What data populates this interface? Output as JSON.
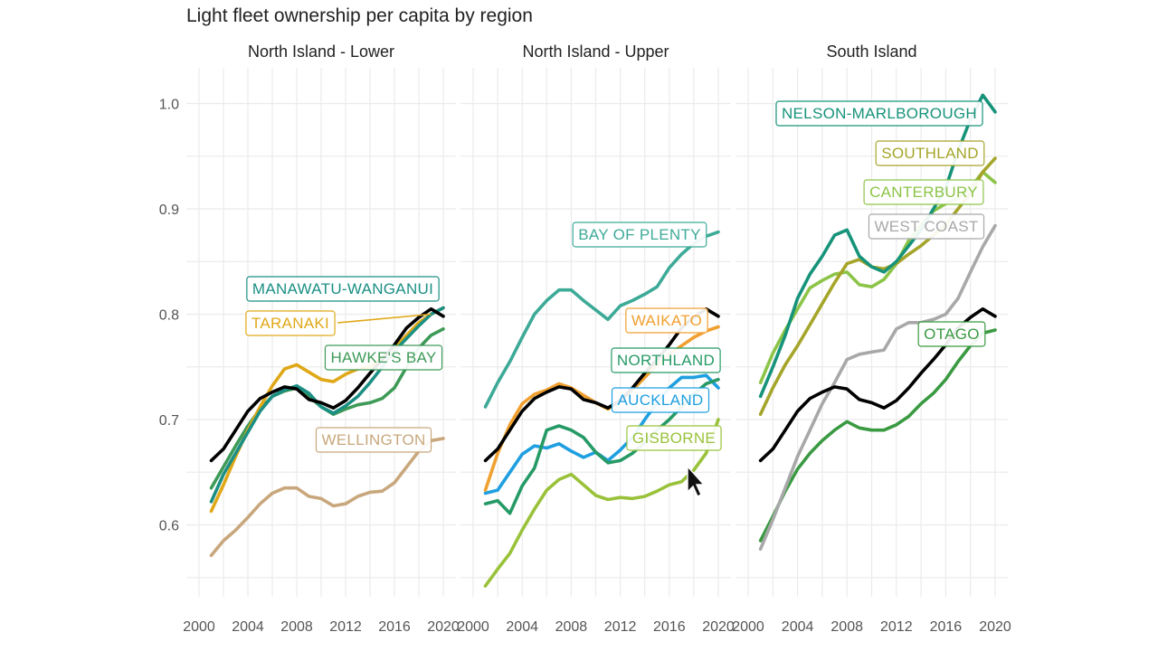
{
  "chart_data": {
    "type": "line",
    "title": "Light fleet ownership per capita by region",
    "xlabel": "",
    "ylabel": "",
    "xlim": [
      2001,
      2020
    ],
    "ylim": [
      0.55,
      1.03
    ],
    "x_ticks": [
      "2000",
      "2004",
      "2008",
      "2012",
      "2016",
      "2020"
    ],
    "y_ticks": [
      "0.6",
      "0.7",
      "0.8",
      "0.9",
      "1.0"
    ],
    "grid": true,
    "legend": "direct labels",
    "years": [
      2001,
      2002,
      2003,
      2004,
      2005,
      2006,
      2007,
      2008,
      2009,
      2010,
      2011,
      2012,
      2013,
      2014,
      2015,
      2016,
      2017,
      2018,
      2019,
      2020
    ],
    "national_average": {
      "color": "#000000",
      "values": [
        0.661,
        0.672,
        0.69,
        0.708,
        0.72,
        0.726,
        0.731,
        0.729,
        0.719,
        0.716,
        0.711,
        0.718,
        0.73,
        0.744,
        0.757,
        0.771,
        0.787,
        0.797,
        0.805,
        0.798
      ]
    },
    "panels": [
      {
        "name": "North Island - Lower",
        "series": [
          {
            "name": "MANAWATU-WANGANUI",
            "color": "#1b8f84",
            "values": [
              0.622,
              0.648,
              0.668,
              0.688,
              0.708,
              0.722,
              0.728,
              0.732,
              0.725,
              0.712,
              0.706,
              0.713,
              0.722,
              0.735,
              0.75,
              0.765,
              0.777,
              0.789,
              0.8,
              0.806
            ]
          },
          {
            "name": "TARANAKI",
            "color": "#e0a818",
            "values": [
              0.613,
              0.638,
              0.665,
              0.69,
              0.712,
              0.732,
              0.748,
              0.752,
              0.745,
              0.738,
              0.736,
              0.743,
              0.748,
              0.75,
              0.758,
              0.768,
              0.78,
              0.792,
              0.8,
              0.806
            ]
          },
          {
            "name": "HAWKE'S BAY",
            "color": "#3d9a57",
            "values": [
              0.635,
              0.655,
              0.675,
              0.694,
              0.71,
              0.722,
              0.727,
              0.73,
              0.722,
              0.712,
              0.705,
              0.71,
              0.714,
              0.716,
              0.72,
              0.73,
              0.75,
              0.768,
              0.78,
              0.786
            ]
          },
          {
            "name": "WELLINGTON",
            "color": "#c8a77c",
            "values": [
              0.571,
              0.585,
              0.595,
              0.607,
              0.62,
              0.63,
              0.635,
              0.635,
              0.627,
              0.625,
              0.618,
              0.62,
              0.627,
              0.631,
              0.632,
              0.64,
              0.655,
              0.67,
              0.68,
              0.682
            ]
          }
        ]
      },
      {
        "name": "North Island - Upper",
        "series": [
          {
            "name": "BAY OF PLENTY",
            "color": "#3daa98",
            "values": [
              0.712,
              0.735,
              0.755,
              0.778,
              0.8,
              0.813,
              0.823,
              0.823,
              0.813,
              0.804,
              0.795,
              0.808,
              0.813,
              0.819,
              0.826,
              0.844,
              0.857,
              0.867,
              0.874,
              0.878
            ]
          },
          {
            "name": "WAIKATO",
            "color": "#f0a030",
            "values": [
              0.633,
              0.668,
              0.695,
              0.715,
              0.724,
              0.728,
              0.734,
              0.73,
              0.723,
              0.716,
              0.71,
              0.718,
              0.728,
              0.74,
              0.752,
              0.762,
              0.77,
              0.778,
              0.784,
              0.788
            ]
          },
          {
            "name": "NORTHLAND",
            "color": "#269a66",
            "values": [
              0.62,
              0.623,
              0.611,
              0.637,
              0.654,
              0.69,
              0.694,
              0.69,
              0.683,
              0.669,
              0.659,
              0.661,
              0.668,
              0.678,
              0.69,
              0.7,
              0.712,
              0.724,
              0.734,
              0.738
            ]
          },
          {
            "name": "AUCKLAND",
            "color": "#1e9fe0",
            "values": [
              0.63,
              0.633,
              0.65,
              0.667,
              0.675,
              0.673,
              0.677,
              0.67,
              0.664,
              0.669,
              0.661,
              0.671,
              0.683,
              0.7,
              0.716,
              0.73,
              0.74,
              0.74,
              0.742,
              0.73
            ]
          },
          {
            "name": "GISBORNE",
            "color": "#99c23a",
            "values": [
              0.542,
              0.558,
              0.573,
              0.595,
              0.615,
              0.633,
              0.643,
              0.648,
              0.638,
              0.628,
              0.624,
              0.626,
              0.625,
              0.627,
              0.632,
              0.638,
              0.641,
              0.652,
              0.668,
              0.7
            ]
          }
        ]
      },
      {
        "name": "South Island",
        "series": [
          {
            "name": "NELSON-MARLBOROUGH",
            "color": "#16937a",
            "values": [
              0.722,
              0.75,
              0.78,
              0.815,
              0.838,
              0.855,
              0.875,
              0.88,
              0.855,
              0.845,
              0.84,
              0.85,
              0.865,
              0.88,
              0.9,
              0.92,
              0.955,
              0.985,
              1.008,
              0.992
            ]
          },
          {
            "name": "SOUTHLAND",
            "color": "#a5a52a",
            "values": [
              0.705,
              0.73,
              0.752,
              0.77,
              0.79,
              0.81,
              0.83,
              0.848,
              0.852,
              0.845,
              0.843,
              0.848,
              0.857,
              0.865,
              0.875,
              0.885,
              0.9,
              0.915,
              0.935,
              0.948
            ]
          },
          {
            "name": "CANTERBURY",
            "color": "#8cc447",
            "values": [
              0.735,
              0.763,
              0.785,
              0.805,
              0.825,
              0.832,
              0.838,
              0.84,
              0.828,
              0.826,
              0.833,
              0.848,
              0.87,
              0.885,
              0.898,
              0.905,
              0.91,
              0.92,
              0.935,
              0.925
            ]
          },
          {
            "name": "WEST COAST",
            "color": "#a8a8a8",
            "values": [
              0.577,
              0.605,
              0.635,
              0.665,
              0.69,
              0.715,
              0.735,
              0.757,
              0.762,
              0.764,
              0.766,
              0.786,
              0.792,
              0.792,
              0.795,
              0.8,
              0.815,
              0.84,
              0.864,
              0.884
            ]
          },
          {
            "name": "OTAGO",
            "color": "#3a9a42",
            "values": [
              0.585,
              0.608,
              0.632,
              0.653,
              0.668,
              0.68,
              0.69,
              0.698,
              0.692,
              0.69,
              0.69,
              0.695,
              0.703,
              0.715,
              0.725,
              0.738,
              0.755,
              0.77,
              0.782,
              0.785
            ]
          }
        ]
      }
    ]
  }
}
